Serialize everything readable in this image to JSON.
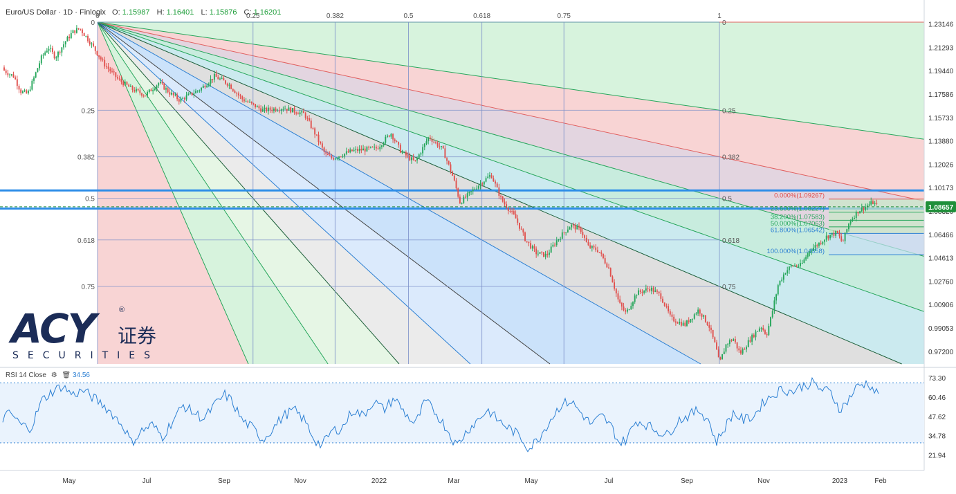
{
  "header": {
    "symbol": "Euro/US Dollar · 1D · Finlogix",
    "o_label": "O:",
    "o_value": "1.15987",
    "h_label": "H:",
    "h_value": "1.16401",
    "l_label": "L:",
    "l_value": "1.15876",
    "c_label": "C:",
    "c_value": "1.16201"
  },
  "rsi": {
    "label": "RSI 14 Close",
    "value": "34.56",
    "settings_icon": "gear-icon",
    "delete_icon": "trash-icon"
  },
  "logo": {
    "text": "ACY",
    "cn": "证券",
    "registered": "®",
    "sub": "SECURITIES"
  },
  "colors": {
    "up": "#26a65b",
    "down": "#e0504d",
    "fan_line": "#5a6a7a",
    "price_tag": "#1f8f3a",
    "rsi_line": "#2b7fd3",
    "hline": "#2e8ee8"
  },
  "chart_data": {
    "type": "candlestick",
    "x_labels": [
      "May",
      "Jul",
      "Sep",
      "Nov",
      "2022",
      "Mar",
      "May",
      "Jul",
      "Sep",
      "Nov",
      "2023",
      "Feb"
    ],
    "y_ticks": [
      "1.23146",
      "1.21293",
      "1.19440",
      "1.17586",
      "1.15733",
      "1.13880",
      "1.12026",
      "1.10173",
      "1.08320",
      "1.06466",
      "1.04613",
      "1.02760",
      "1.00906",
      "0.99053",
      "0.97200"
    ],
    "y_range": [
      0.962,
      1.234
    ],
    "last_price": "1.08657",
    "fan_top_labels": [
      "0",
      "0.25",
      "0.382",
      "0.5",
      "0.618",
      "0.75",
      "1"
    ],
    "fan_left_labels": [
      "0",
      "0.25",
      "0.382",
      "0.5",
      "0.618",
      "0.75"
    ],
    "fan_mid_labels": [
      "0",
      "0.25",
      "0.382",
      "0.5",
      "0.618",
      "0.75"
    ],
    "fan_levels": [
      0,
      0.25,
      0.382,
      0.5,
      0.618,
      0.75,
      1
    ],
    "fan_anchor_price": 1.2329,
    "fan_low_price": 0.9536,
    "horizontal_levels": [
      1.0995,
      1.0852
    ],
    "fib_retracement": [
      {
        "label": "0.000%(1.09267)",
        "price": 1.09267,
        "color": "#e0504d"
      },
      {
        "label": "23.600%(1.08227)",
        "price": 1.08227,
        "color": "#26a65b"
      },
      {
        "label": "38.200%(1.07583)",
        "price": 1.07583,
        "color": "#26a65b"
      },
      {
        "label": "50.000%(1.07063)",
        "price": 1.07063,
        "color": "#26a65b"
      },
      {
        "label": "61.800%(1.06542)",
        "price": 1.06542,
        "color": "#2b7fd3"
      },
      {
        "label": "100.000%(1.04858)",
        "price": 1.04858,
        "color": "#2b7fd3"
      }
    ],
    "candle_count": 470,
    "price_path": [
      [
        0,
        1.197
      ],
      [
        10,
        1.193
      ],
      [
        20,
        1.19
      ],
      [
        30,
        1.178
      ],
      [
        40,
        1.176
      ],
      [
        50,
        1.19
      ],
      [
        60,
        1.205
      ],
      [
        70,
        1.213
      ],
      [
        80,
        1.205
      ],
      [
        95,
        1.218
      ],
      [
        105,
        1.225
      ],
      [
        115,
        1.228
      ],
      [
        125,
        1.221
      ],
      [
        135,
        1.213
      ],
      [
        150,
        1.2
      ],
      [
        170,
        1.188
      ],
      [
        190,
        1.18
      ],
      [
        210,
        1.175
      ],
      [
        230,
        1.185
      ],
      [
        245,
        1.177
      ],
      [
        260,
        1.171
      ],
      [
        290,
        1.18
      ],
      [
        310,
        1.19
      ],
      [
        330,
        1.184
      ],
      [
        350,
        1.172
      ],
      [
        380,
        1.163
      ],
      [
        410,
        1.165
      ],
      [
        440,
        1.16
      ],
      [
        455,
        1.145
      ],
      [
        470,
        1.128
      ],
      [
        480,
        1.125
      ],
      [
        510,
        1.131
      ],
      [
        545,
        1.133
      ],
      [
        565,
        1.145
      ],
      [
        580,
        1.13
      ],
      [
        600,
        1.122
      ],
      [
        620,
        1.142
      ],
      [
        640,
        1.132
      ],
      [
        655,
        1.11
      ],
      [
        665,
        1.09
      ],
      [
        675,
        1.095
      ],
      [
        690,
        1.103
      ],
      [
        710,
        1.112
      ],
      [
        725,
        1.092
      ],
      [
        745,
        1.078
      ],
      [
        760,
        1.06
      ],
      [
        775,
        1.05
      ],
      [
        790,
        1.048
      ],
      [
        805,
        1.06
      ],
      [
        825,
        1.072
      ],
      [
        840,
        1.068
      ],
      [
        850,
        1.055
      ],
      [
        865,
        1.052
      ],
      [
        880,
        1.038
      ],
      [
        895,
        1.01
      ],
      [
        905,
        1.002
      ],
      [
        920,
        1.018
      ],
      [
        940,
        1.022
      ],
      [
        955,
        1.016
      ],
      [
        970,
        0.998
      ],
      [
        990,
        0.993
      ],
      [
        1010,
        1.005
      ],
      [
        1025,
        0.992
      ],
      [
        1035,
        0.975
      ],
      [
        1040,
        0.962
      ],
      [
        1050,
        0.978
      ],
      [
        1060,
        0.982
      ],
      [
        1070,
        0.97
      ],
      [
        1085,
        0.982
      ],
      [
        1100,
        0.992
      ],
      [
        1108,
        0.985
      ],
      [
        1115,
        1.0
      ],
      [
        1125,
        1.025
      ],
      [
        1135,
        1.035
      ],
      [
        1145,
        1.04
      ],
      [
        1158,
        1.04
      ],
      [
        1170,
        1.052
      ],
      [
        1185,
        1.058
      ],
      [
        1195,
        1.063
      ],
      [
        1210,
        1.066
      ],
      [
        1218,
        1.058
      ],
      [
        1228,
        1.075
      ],
      [
        1240,
        1.083
      ],
      [
        1252,
        1.087
      ],
      [
        1262,
        1.09
      ],
      [
        1270,
        1.086
      ]
    ],
    "rsi_ticks": [
      "73.30",
      "60.46",
      "47.62",
      "34.78",
      "21.94"
    ],
    "rsi_range": [
      18,
      78
    ],
    "rsi_bands": [
      70,
      30
    ],
    "rsi_path": [
      [
        0,
        45
      ],
      [
        15,
        50
      ],
      [
        30,
        42
      ],
      [
        45,
        40
      ],
      [
        60,
        58
      ],
      [
        75,
        64
      ],
      [
        90,
        68
      ],
      [
        105,
        62
      ],
      [
        120,
        65
      ],
      [
        135,
        60
      ],
      [
        150,
        55
      ],
      [
        165,
        48
      ],
      [
        180,
        40
      ],
      [
        190,
        30
      ],
      [
        205,
        38
      ],
      [
        220,
        42
      ],
      [
        235,
        34
      ],
      [
        250,
        45
      ],
      [
        265,
        55
      ],
      [
        280,
        50
      ],
      [
        295,
        46
      ],
      [
        310,
        55
      ],
      [
        325,
        62
      ],
      [
        335,
        58
      ],
      [
        350,
        45
      ],
      [
        365,
        40
      ],
      [
        380,
        32
      ],
      [
        395,
        40
      ],
      [
        410,
        48
      ],
      [
        425,
        52
      ],
      [
        440,
        45
      ],
      [
        455,
        32
      ],
      [
        465,
        28
      ],
      [
        480,
        38
      ],
      [
        495,
        40
      ],
      [
        510,
        52
      ],
      [
        525,
        48
      ],
      [
        540,
        58
      ],
      [
        555,
        52
      ],
      [
        570,
        60
      ],
      [
        585,
        50
      ],
      [
        600,
        42
      ],
      [
        615,
        58
      ],
      [
        630,
        50
      ],
      [
        645,
        40
      ],
      [
        660,
        28
      ],
      [
        675,
        38
      ],
      [
        690,
        45
      ],
      [
        705,
        52
      ],
      [
        720,
        45
      ],
      [
        735,
        40
      ],
      [
        750,
        35
      ],
      [
        765,
        26
      ],
      [
        780,
        34
      ],
      [
        795,
        45
      ],
      [
        810,
        55
      ],
      [
        825,
        58
      ],
      [
        840,
        50
      ],
      [
        855,
        42
      ],
      [
        870,
        48
      ],
      [
        885,
        40
      ],
      [
        895,
        30
      ],
      [
        905,
        32
      ],
      [
        920,
        45
      ],
      [
        935,
        42
      ],
      [
        950,
        38
      ],
      [
        965,
        35
      ],
      [
        980,
        45
      ],
      [
        995,
        48
      ],
      [
        1010,
        52
      ],
      [
        1025,
        45
      ],
      [
        1035,
        30
      ],
      [
        1045,
        38
      ],
      [
        1060,
        50
      ],
      [
        1075,
        45
      ],
      [
        1090,
        48
      ],
      [
        1105,
        58
      ],
      [
        1118,
        62
      ],
      [
        1130,
        66
      ],
      [
        1145,
        64
      ],
      [
        1160,
        68
      ],
      [
        1175,
        70
      ],
      [
        1185,
        66
      ],
      [
        1200,
        64
      ],
      [
        1215,
        52
      ],
      [
        1225,
        58
      ],
      [
        1240,
        68
      ],
      [
        1255,
        70
      ],
      [
        1265,
        64
      ],
      [
        1272,
        62
      ]
    ]
  }
}
